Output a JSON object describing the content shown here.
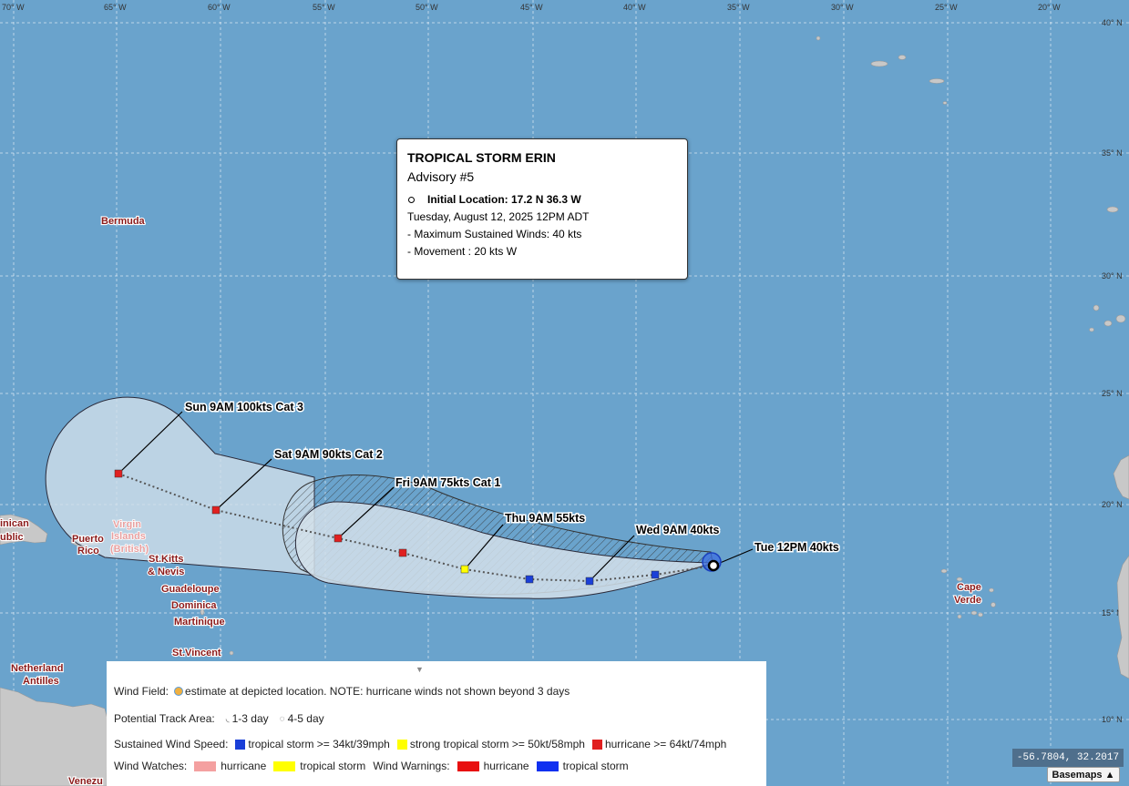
{
  "map": {
    "lon_labels": [
      "70° W",
      "65° W",
      "60° W",
      "55° W",
      "50° W",
      "45° W",
      "40° W",
      "35° W",
      "30° W",
      "25° W",
      "20° W"
    ],
    "lat_labels": [
      "40° N",
      "35° N",
      "30° N",
      "25° N",
      "20° N",
      "15° N",
      "10° N"
    ],
    "places": {
      "bermuda": "Bermuda",
      "dominican": "inican",
      "dominican2": "ublic",
      "puerto": "Puerto",
      "rico": "Rico",
      "virgin": "Virgin",
      "islands": "Islands",
      "british": "(British)",
      "stkitts": "St.Kitts",
      "nevis": "& Nevis",
      "guadeloupe": "Guadeloupe",
      "dominica": "Dominica",
      "martinique": "Martinique",
      "stvincent": "St.Vincent",
      "netherland": "Netherland",
      "antilles": "Antilles",
      "cape": "Cape",
      "verde": "Verde",
      "venez": "Venezu"
    },
    "track_labels": [
      "Sun 9AM 100kts Cat 3",
      "Sat 9AM 90kts Cat 2",
      "Fri 9AM 75kts Cat 1",
      "Thu 9AM 55kts",
      "Wed 9AM 40kts",
      "Tue 12PM 40kts"
    ],
    "colors": {
      "ocean": "#6aa3cc",
      "land": "#c8c8c8",
      "tropical_storm": "#1a3fd8",
      "strong_tropical_storm": "#ffff00",
      "hurricane": "#e02020",
      "watch_hurricane": "#f4a0a0",
      "watch_tropical_storm": "#ffff00",
      "warning_hurricane": "#e81010",
      "warning_tropical_storm": "#1030f0"
    }
  },
  "popup": {
    "title": "TROPICAL STORM ERIN",
    "advisory": "Advisory #5",
    "initial_location": "Initial Location: 17.2 N 36.3 W",
    "datetime": "Tuesday, August 12, 2025 12PM ADT",
    "max_winds": "- Maximum Sustained Winds: 40 kts",
    "movement": "- Movement : 20 kts W"
  },
  "legend": {
    "wind_field_label": "Wind Field:",
    "wind_field_text": "estimate at depicted location. NOTE: hurricane winds not shown beyond 3 days",
    "track_area_label": "Potential Track Area:",
    "track_area_1": "1-3 day",
    "track_area_2": "4-5 day",
    "speed_label": "Sustained Wind Speed:",
    "speed_ts": "tropical storm >= 34kt/39mph",
    "speed_sts": "strong tropical storm >= 50kt/58mph",
    "speed_hu": "hurricane >= 64kt/74mph",
    "watches_label": "Wind Watches:",
    "watch_hu": "hurricane",
    "watch_ts": "tropical storm",
    "warnings_label": "Wind Warnings:",
    "warning_hu": "hurricane",
    "warning_ts": "tropical storm"
  },
  "coords": "-56.7804, 32.2017",
  "basemaps": "Basemaps ▲"
}
